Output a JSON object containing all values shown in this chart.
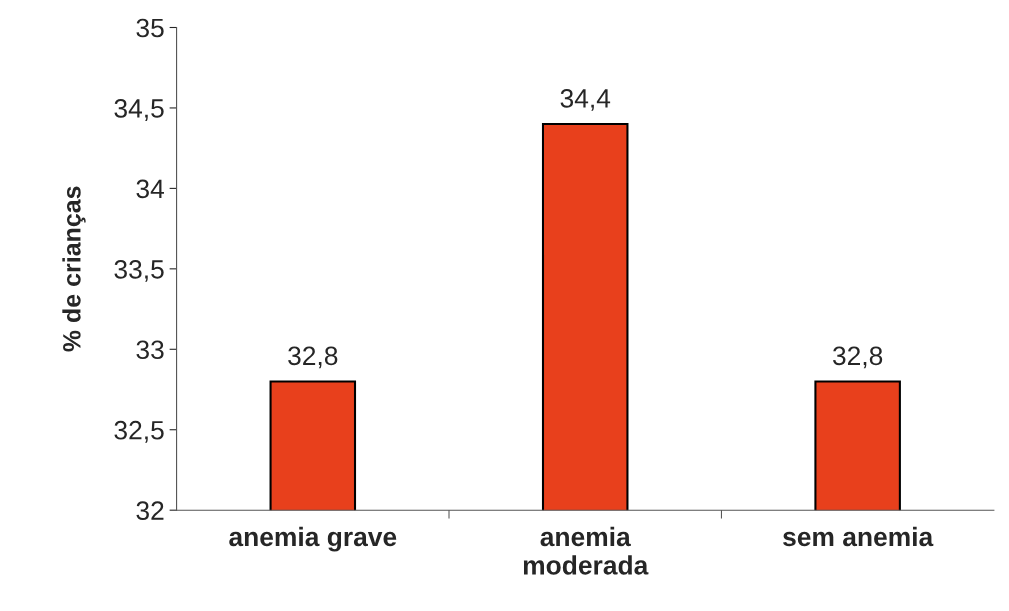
{
  "chart_data": {
    "type": "bar",
    "ylabel": "% de crianças",
    "categories": [
      "anemia grave",
      "anemia\nmoderada",
      "sem anemia"
    ],
    "values": [
      32.8,
      34.4,
      32.8
    ],
    "value_labels": [
      "32,8",
      "34,4",
      "32,8"
    ],
    "color": "#e8401c",
    "ylim": [
      32,
      35
    ],
    "yticks": [
      32,
      {
        "value": 32.5,
        "label": "32,5"
      },
      33,
      {
        "value": 33.5,
        "label": "33,5"
      },
      34,
      {
        "value": 34.5,
        "label": "34,5"
      },
      35
    ],
    "grid": false,
    "legend": false
  }
}
